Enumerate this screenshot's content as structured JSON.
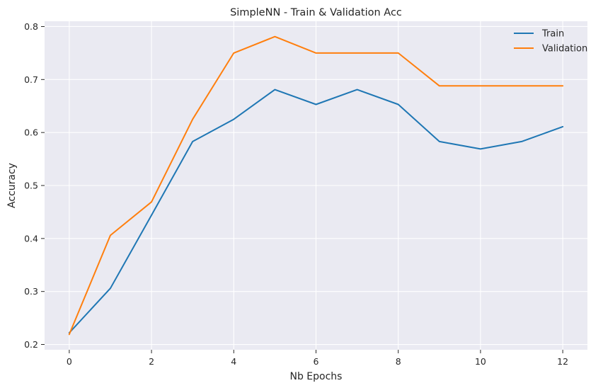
{
  "chart_data": {
    "type": "line",
    "title": "SimpleNN - Train & Validation Acc",
    "xlabel": "Nb Epochs",
    "ylabel": "Accuracy",
    "x": [
      0,
      1,
      2,
      3,
      4,
      5,
      6,
      7,
      8,
      9,
      10,
      11,
      12
    ],
    "xlim": [
      -0.6,
      12.6
    ],
    "ylim": [
      0.19,
      0.81
    ],
    "xticks": [
      0,
      2,
      4,
      6,
      8,
      10,
      12
    ],
    "xtick_labels": [
      "0",
      "2",
      "4",
      "6",
      "8",
      "10",
      "12"
    ],
    "yticks": [
      0.2,
      0.3,
      0.4,
      0.5,
      0.6,
      0.7,
      0.8
    ],
    "ytick_labels": [
      "0.2",
      "0.3",
      "0.4",
      "0.5",
      "0.6",
      "0.7",
      "0.8"
    ],
    "grid": true,
    "legend_position": "top-right",
    "series": [
      {
        "name": "Train",
        "color": "#1f77b4",
        "values": [
          0.222,
          0.306,
          0.444,
          0.583,
          0.625,
          0.681,
          0.653,
          0.681,
          0.653,
          0.583,
          0.569,
          0.583,
          0.611
        ]
      },
      {
        "name": "Validation",
        "color": "#ff7f0e",
        "values": [
          0.219,
          0.406,
          0.469,
          0.625,
          0.75,
          0.781,
          0.75,
          0.75,
          0.75,
          0.688,
          0.688,
          0.688,
          0.688
        ]
      }
    ],
    "colors": {
      "plot_background": "#eaeaf2",
      "grid": "#ffffff",
      "text": "#262626"
    }
  }
}
